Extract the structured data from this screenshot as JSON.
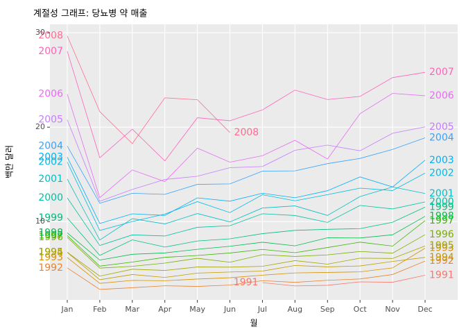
{
  "chart_data": {
    "type": "line",
    "title": "계절성 그래프: 당뇨병 약 매출",
    "x_label": "월",
    "y_label": "백만 달러",
    "categories": [
      "Jan",
      "Feb",
      "Mar",
      "Apr",
      "May",
      "Jun",
      "Jul",
      "Aug",
      "Sep",
      "Oct",
      "Nov",
      "Dec"
    ],
    "ylim": [
      1.7,
      30.9
    ],
    "yticks": [
      10,
      20,
      30
    ],
    "grid": true,
    "series": [
      {
        "name": "1991",
        "color": "#F8766D",
        "values": [
          null,
          null,
          null,
          null,
          null,
          null,
          3.53,
          3.18,
          3.25,
          3.61,
          3.57,
          4.31
        ]
      },
      {
        "name": "1992",
        "color": "#EA8331",
        "values": [
          5.09,
          2.81,
          2.99,
          3.2,
          3.13,
          3.27,
          3.74,
          3.56,
          3.78,
          3.92,
          4.39,
          5.81
        ]
      },
      {
        "name": "1993",
        "color": "#D89000",
        "values": [
          6.19,
          3.45,
          3.77,
          3.73,
          3.91,
          4.05,
          4.32,
          4.56,
          4.61,
          4.67,
          5.09,
          7.18
        ]
      },
      {
        "name": "1994",
        "color": "#C09B00",
        "values": [
          6.73,
          3.84,
          4.39,
          4.08,
          4.54,
          4.65,
          4.75,
          5.35,
          5.2,
          5.3,
          5.77,
          6.2
        ]
      },
      {
        "name": "1995",
        "color": "#A3A500",
        "values": [
          6.75,
          4.22,
          4.95,
          4.82,
          5.19,
          5.17,
          5.26,
          5.86,
          5.49,
          6.12,
          6.09,
          7.42
        ]
      },
      {
        "name": "1996",
        "color": "#7CAE00",
        "values": [
          8.33,
          5.07,
          5.26,
          5.6,
          6.11,
          5.69,
          6.49,
          6.3,
          6.47,
          6.83,
          6.65,
          8.61
        ]
      },
      {
        "name": "1997",
        "color": "#39B600",
        "values": [
          8.52,
          5.28,
          5.71,
          6.21,
          6.41,
          6.67,
          7.05,
          6.7,
          7.25,
          7.82,
          7.4,
          10.1
        ]
      },
      {
        "name": "1998",
        "color": "#00BB4E",
        "values": [
          8.8,
          5.92,
          6.53,
          6.68,
          7.06,
          7.38,
          7.81,
          7.43,
          8.28,
          8.26,
          8.6,
          10.56
        ]
      },
      {
        "name": "1999",
        "color": "#00BF7D",
        "values": [
          10.39,
          6.42,
          8.06,
          7.3,
          7.94,
          8.17,
          8.72,
          9.07,
          9.18,
          9.25,
          9.93,
          11.53
        ]
      },
      {
        "name": "2000",
        "color": "#00C1A3",
        "values": [
          12.51,
          7.46,
          8.59,
          8.47,
          9.39,
          9.56,
          10.83,
          10.64,
          9.91,
          11.71,
          11.34,
          12.08
        ]
      },
      {
        "name": "2001",
        "color": "#00BFC4",
        "values": [
          14.5,
          8.05,
          10.31,
          9.75,
          10.85,
          9.96,
          11.44,
          11.66,
          10.65,
          12.65,
          13.67,
          12.97
        ]
      },
      {
        "name": "2002",
        "color": "#00BAE0",
        "values": [
          16.3,
          9.05,
          10.0,
          10.79,
          12.11,
          10.95,
          12.84,
          12.2,
          12.85,
          13.54,
          13.29,
          15.13
        ]
      },
      {
        "name": "2003",
        "color": "#00B0F6",
        "values": [
          16.83,
          9.8,
          10.82,
          10.65,
          12.51,
          12.16,
          13.0,
          12.52,
          13.27,
          14.73,
          13.67,
          16.5
        ]
      },
      {
        "name": "2004",
        "color": "#35A2FF",
        "values": [
          18.0,
          11.94,
          13.0,
          12.88,
          13.94,
          13.99,
          15.34,
          15.37,
          16.14,
          16.69,
          17.64,
          18.87
        ]
      },
      {
        "name": "2005",
        "color": "#C77CFF",
        "values": [
          20.78,
          12.15,
          13.4,
          14.46,
          14.8,
          15.71,
          15.83,
          17.55,
          18.1,
          17.5,
          19.35,
          20.03
        ]
      },
      {
        "name": "2006",
        "color": "#E76BF3",
        "values": [
          23.49,
          12.54,
          15.47,
          14.23,
          17.78,
          16.29,
          16.98,
          18.61,
          16.62,
          21.43,
          23.58,
          23.33
        ]
      },
      {
        "name": "2007",
        "color": "#FF62BC",
        "values": [
          28.04,
          16.76,
          19.79,
          16.43,
          21.0,
          20.68,
          21.83,
          23.93,
          22.93,
          23.26,
          25.25,
          25.81
        ]
      },
      {
        "name": "2008",
        "color": "#FF6C91",
        "values": [
          29.67,
          21.65,
          18.26,
          23.11,
          22.91,
          19.43,
          null,
          null,
          null,
          null,
          null,
          null
        ]
      }
    ]
  }
}
